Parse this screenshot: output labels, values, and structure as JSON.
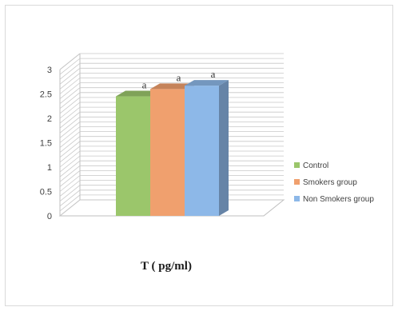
{
  "chart_data": {
    "type": "bar",
    "title": "",
    "xlabel": "T ( pg/ml)",
    "ylabel": "",
    "ylim": [
      0,
      3
    ],
    "yticks": [
      "0",
      "0.5",
      "1",
      "1.5",
      "2",
      "2.5",
      "3"
    ],
    "grid": true,
    "style": "3d-clustered-column",
    "legend_position": "right",
    "series": [
      {
        "name": "Control",
        "value": 2.45,
        "label": "a",
        "color": "#9bc66b"
      },
      {
        "name": "Smokers group",
        "value": 2.6,
        "label": "a",
        "color": "#f0a06e"
      },
      {
        "name": "Non Smokers group",
        "value": 2.67,
        "label": "a",
        "color": "#8db8e8"
      }
    ]
  }
}
